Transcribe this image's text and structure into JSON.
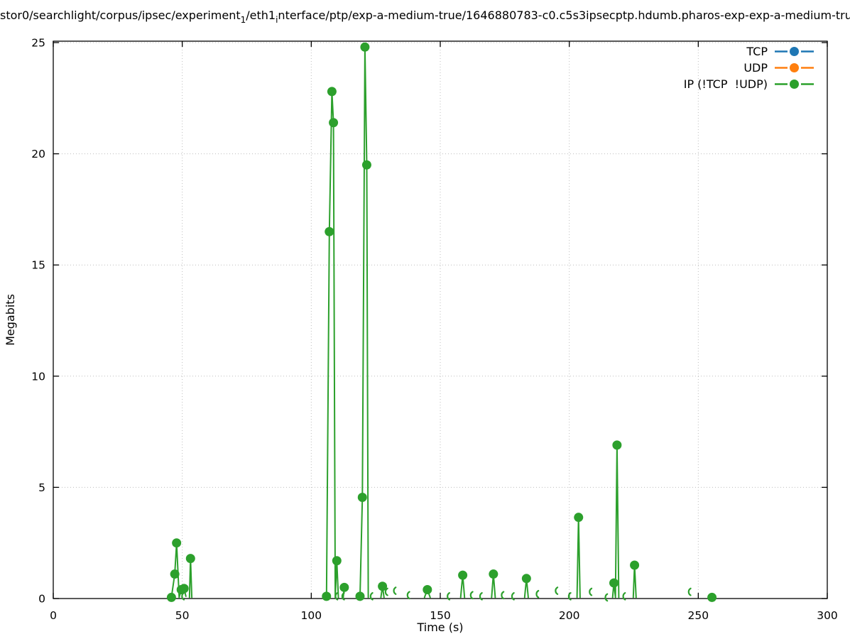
{
  "title": {
    "pre": "stor0/searchlight/corpus/ipsec/experiment",
    "sub1": "1",
    "mid": "/eth1",
    "sub2": "i",
    "post": "nterface/ptp/exp-a-medium-true/1646880783-c0.c5s3ipsecptp.hdumb.pharos-exp-exp-a-medium-tru"
  },
  "chart_data": {
    "type": "line",
    "title": "stor0/searchlight/corpus/ipsec/experiment_1/eth1_interface/ptp/exp-a-medium-true/1646880783-c0.c5s3ipsecptp.hdumb.pharos-exp-exp-a-medium-tru",
    "xlabel": "Time (s)",
    "ylabel": "Megabits",
    "xlim": [
      0,
      300
    ],
    "ylim": [
      0,
      25
    ],
    "xticks": [
      0,
      50,
      100,
      150,
      200,
      250,
      300
    ],
    "yticks": [
      0,
      5,
      10,
      15,
      20,
      25
    ],
    "grid": true,
    "grid_style": "dotted",
    "legend_position": "top-right",
    "axis_color": "#000000",
    "grid_color": "#bdbdbd",
    "series": [
      {
        "name": "TCP",
        "color": "#1f77b4",
        "marker": "circle",
        "points": []
      },
      {
        "name": "UDP",
        "color": "#ff7f0e",
        "marker": "circle",
        "points": []
      },
      {
        "name": "IP (!TCP  !UDP)",
        "color": "#2ca02c",
        "marker": "circle",
        "points": [
          [
            45.8,
            0.05,
            "d"
          ],
          [
            47.1,
            1.1,
            "d"
          ],
          [
            47.8,
            2.5,
            "d"
          ],
          [
            48.8,
            0.05,
            0
          ],
          [
            49.6,
            0.4,
            "d"
          ],
          [
            50.7,
            0.45,
            "d"
          ],
          [
            51.4,
            0.1,
            "a"
          ],
          null,
          [
            52.8,
            0.05,
            0
          ],
          [
            53.2,
            1.8,
            "d"
          ],
          [
            53.7,
            0.05,
            0
          ],
          null,
          [
            105.9,
            0.1,
            "d"
          ],
          [
            107.0,
            16.5,
            "d"
          ],
          [
            108.0,
            22.8,
            "d"
          ],
          [
            108.6,
            21.4,
            "d"
          ],
          [
            109.3,
            0.05,
            0
          ],
          [
            109.9,
            1.7,
            "d"
          ],
          [
            110.5,
            0.05,
            0
          ],
          null,
          [
            110.9,
            0.1,
            "a"
          ],
          null,
          [
            112.4,
            0.05,
            0
          ],
          [
            112.8,
            0.5,
            "d"
          ],
          null,
          [
            113.5,
            0.1,
            "a"
          ],
          null,
          [
            118.9,
            0.1,
            "d"
          ],
          [
            119.8,
            4.55,
            "d"
          ],
          [
            120.8,
            24.8,
            "d"
          ],
          [
            121.5,
            19.5,
            "d"
          ],
          [
            122.1,
            0.05,
            0
          ],
          null,
          [
            124.5,
            0.1,
            "a"
          ],
          null,
          [
            127.0,
            0.05,
            0
          ],
          [
            127.6,
            0.55,
            "d"
          ],
          [
            128.2,
            0.05,
            0
          ],
          null,
          [
            130.3,
            0.3,
            "a"
          ],
          null,
          [
            133.5,
            0.35,
            "a"
          ],
          null,
          [
            138.8,
            0.15,
            "a"
          ],
          null,
          [
            143.9,
            0.05,
            0
          ],
          [
            145.0,
            0.4,
            "d"
          ],
          [
            146.1,
            0.05,
            0
          ],
          null,
          [
            154.3,
            0.1,
            "a"
          ],
          null,
          [
            157.9,
            0.05,
            0
          ],
          [
            158.7,
            1.05,
            "d"
          ],
          [
            159.4,
            0.05,
            0
          ],
          null,
          [
            163.3,
            0.15,
            "a"
          ],
          null,
          [
            166.9,
            0.1,
            "a"
          ],
          null,
          [
            169.9,
            0.05,
            0
          ],
          [
            170.6,
            1.1,
            "d"
          ],
          [
            171.3,
            0.05,
            0
          ],
          null,
          [
            175.3,
            0.15,
            "a"
          ],
          null,
          [
            179.3,
            0.1,
            "a"
          ],
          null,
          [
            182.7,
            0.05,
            0
          ],
          [
            183.4,
            0.9,
            "d"
          ],
          [
            184.1,
            0.05,
            0
          ],
          null,
          [
            188.8,
            0.2,
            "a"
          ],
          null,
          [
            196.2,
            0.35,
            "a"
          ],
          null,
          [
            201.3,
            0.1,
            "a"
          ],
          null,
          [
            203.0,
            0.05,
            0
          ],
          [
            203.6,
            3.65,
            "d"
          ],
          [
            204.2,
            0.05,
            0
          ],
          null,
          [
            209.4,
            0.3,
            "a"
          ],
          null,
          [
            215.5,
            0.05,
            "a"
          ],
          null,
          [
            216.8,
            0.05,
            0
          ],
          [
            217.3,
            0.7,
            "d"
          ],
          [
            217.9,
            0.05,
            0
          ],
          [
            218.5,
            6.9,
            "d"
          ],
          [
            219.2,
            0.05,
            0
          ],
          null,
          [
            222.4,
            0.1,
            "a"
          ],
          null,
          [
            224.8,
            0.05,
            0
          ],
          [
            225.3,
            1.5,
            "d"
          ],
          [
            225.9,
            0.05,
            0
          ],
          null,
          [
            247.8,
            0.3,
            "a"
          ],
          null,
          [
            255.3,
            0.05,
            "d"
          ]
        ]
      }
    ]
  }
}
